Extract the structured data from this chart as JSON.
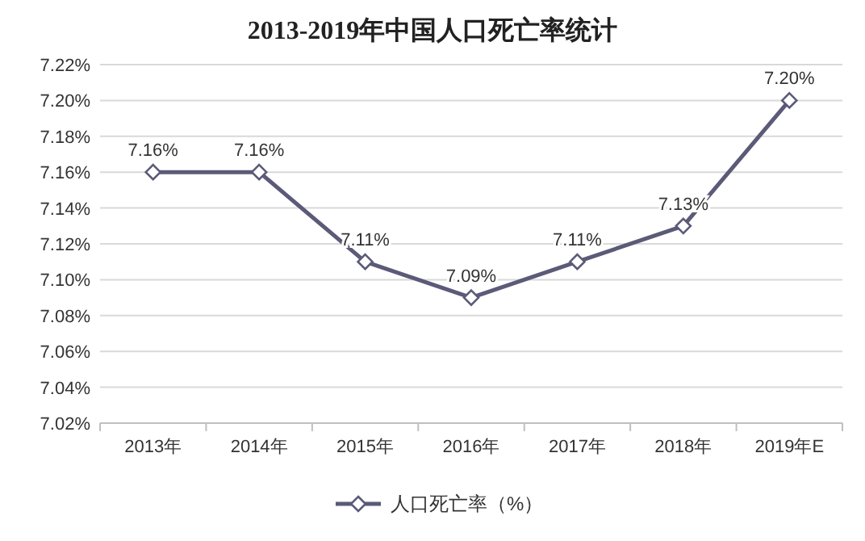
{
  "chart_data": {
    "type": "line",
    "title": "2013-2019年中国人口死亡率统计",
    "categories": [
      "2013年",
      "2014年",
      "2015年",
      "2016年",
      "2017年",
      "2018年",
      "2019年E"
    ],
    "series": [
      {
        "name": "人口死亡率（%）",
        "color": "#5b5a78",
        "values": [
          7.16,
          7.16,
          7.11,
          7.09,
          7.11,
          7.13,
          7.2
        ],
        "value_labels": [
          "7.16%",
          "7.16%",
          "7.11%",
          "7.09%",
          "7.11%",
          "7.13%",
          "7.20%"
        ]
      }
    ],
    "ylim": [
      7.02,
      7.22
    ],
    "yticks": [
      {
        "value": 7.02,
        "label": "7.02%"
      },
      {
        "value": 7.04,
        "label": "7.04%"
      },
      {
        "value": 7.06,
        "label": "7.06%"
      },
      {
        "value": 7.08,
        "label": "7.08%"
      },
      {
        "value": 7.1,
        "label": "7.10%"
      },
      {
        "value": 7.12,
        "label": "7.12%"
      },
      {
        "value": 7.14,
        "label": "7.14%"
      },
      {
        "value": 7.16,
        "label": "7.16%"
      },
      {
        "value": 7.18,
        "label": "7.18%"
      },
      {
        "value": 7.2,
        "label": "7.20%"
      },
      {
        "value": 7.22,
        "label": "7.22%"
      }
    ],
    "grid": "y",
    "legend": "bottom",
    "marker": "diamond",
    "line_style": "solid"
  }
}
